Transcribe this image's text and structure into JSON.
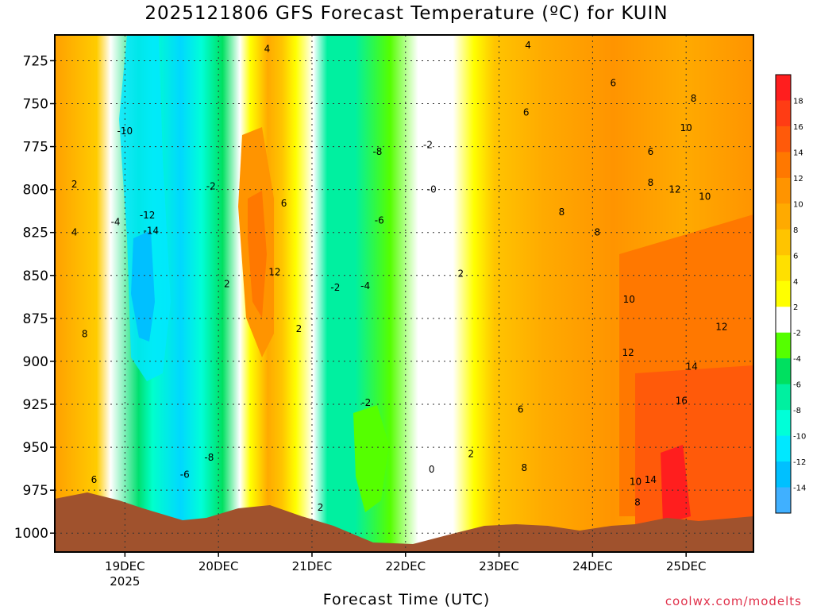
{
  "chart_data": {
    "type": "heatmap",
    "title": "2025121806 GFS Forecast Temperature (ºC) for KUIN",
    "xlabel": "Forecast Time (UTC)",
    "ylabel": "",
    "y_ticks": [
      "725",
      "750",
      "775",
      "800",
      "825",
      "850",
      "875",
      "900",
      "925",
      "950",
      "975",
      "1000"
    ],
    "y_range": [
      710,
      1011
    ],
    "x_ticks": [
      {
        "label": "19DEC",
        "sub": "2025"
      },
      {
        "label": "20DEC",
        "sub": ""
      },
      {
        "label": "21DEC",
        "sub": ""
      },
      {
        "label": "22DEC",
        "sub": ""
      },
      {
        "label": "23DEC",
        "sub": ""
      },
      {
        "label": "24DEC",
        "sub": ""
      },
      {
        "label": "25DEC",
        "sub": ""
      }
    ],
    "x_range_days": [
      18.25,
      25.72
    ],
    "grid": true,
    "colorbar": {
      "levels": [
        18,
        16,
        14,
        12,
        10,
        8,
        6,
        4,
        2,
        -2,
        -4,
        -6,
        -8,
        -10,
        -12,
        -14
      ],
      "colors": [
        "#ff1e1e",
        "#ff3c14",
        "#ff5a0a",
        "#ff7800",
        "#ff9400",
        "#ffaa00",
        "#ffc400",
        "#ffe000",
        "#ffff00",
        "#ffffff",
        "#55ff00",
        "#00e060",
        "#00f0a0",
        "#00ffd8",
        "#00e8ff",
        "#00c0ff",
        "#40b0ff"
      ]
    },
    "contour_labels": [
      {
        "text": "4",
        "day": 20.52,
        "p": 718
      },
      {
        "text": "4",
        "day": 23.31,
        "p": 716
      },
      {
        "text": "6",
        "day": 24.22,
        "p": 738
      },
      {
        "text": "8",
        "day": 25.08,
        "p": 747
      },
      {
        "text": "6",
        "day": 23.29,
        "p": 755
      },
      {
        "text": "10",
        "day": 25.0,
        "p": 764
      },
      {
        "text": "-10",
        "day": 19.0,
        "p": 766
      },
      {
        "text": "-8",
        "day": 21.7,
        "p": 778
      },
      {
        "text": "-2",
        "day": 22.24,
        "p": 774
      },
      {
        "text": "6",
        "day": 24.62,
        "p": 778
      },
      {
        "text": "2",
        "day": 18.46,
        "p": 797
      },
      {
        "text": "-2",
        "day": 19.92,
        "p": 798
      },
      {
        "text": "-0",
        "day": 22.28,
        "p": 800
      },
      {
        "text": "8",
        "day": 24.62,
        "p": 796
      },
      {
        "text": "12",
        "day": 24.88,
        "p": 800
      },
      {
        "text": "10",
        "day": 25.2,
        "p": 804
      },
      {
        "text": "6",
        "day": 20.7,
        "p": 808
      },
      {
        "text": "-12",
        "day": 19.24,
        "p": 815
      },
      {
        "text": "-4",
        "day": 18.9,
        "p": 819
      },
      {
        "text": "-6",
        "day": 21.72,
        "p": 818
      },
      {
        "text": "8",
        "day": 23.67,
        "p": 813
      },
      {
        "text": "-14",
        "day": 19.28,
        "p": 824
      },
      {
        "text": "4",
        "day": 18.46,
        "p": 825
      },
      {
        "text": "8",
        "day": 24.05,
        "p": 825
      },
      {
        "text": "12",
        "day": 20.6,
        "p": 848
      },
      {
        "text": "2",
        "day": 22.59,
        "p": 849
      },
      {
        "text": "2",
        "day": 20.09,
        "p": 855
      },
      {
        "text": "-4",
        "day": 21.57,
        "p": 856
      },
      {
        "text": "-2",
        "day": 21.25,
        "p": 857
      },
      {
        "text": "10",
        "day": 24.39,
        "p": 864
      },
      {
        "text": "2",
        "day": 20.86,
        "p": 881
      },
      {
        "text": "8",
        "day": 18.57,
        "p": 884
      },
      {
        "text": "12",
        "day": 25.38,
        "p": 880
      },
      {
        "text": "12",
        "day": 24.38,
        "p": 895
      },
      {
        "text": "14",
        "day": 25.06,
        "p": 903
      },
      {
        "text": "16",
        "day": 24.95,
        "p": 923
      },
      {
        "text": "-2",
        "day": 21.58,
        "p": 924
      },
      {
        "text": "6",
        "day": 23.23,
        "p": 928
      },
      {
        "text": "-8",
        "day": 19.9,
        "p": 956
      },
      {
        "text": "2",
        "day": 22.7,
        "p": 954
      },
      {
        "text": "-6",
        "day": 19.64,
        "p": 966
      },
      {
        "text": "8",
        "day": 23.27,
        "p": 962
      },
      {
        "text": "0",
        "day": 22.28,
        "p": 963
      },
      {
        "text": "6",
        "day": 18.67,
        "p": 969
      },
      {
        "text": "10",
        "day": 24.46,
        "p": 970
      },
      {
        "text": "14",
        "day": 24.62,
        "p": 969
      },
      {
        "text": "8",
        "day": 24.48,
        "p": 982
      },
      {
        "text": "2",
        "day": 21.09,
        "p": 985
      }
    ]
  },
  "credit": "coolwx.com/modelts"
}
